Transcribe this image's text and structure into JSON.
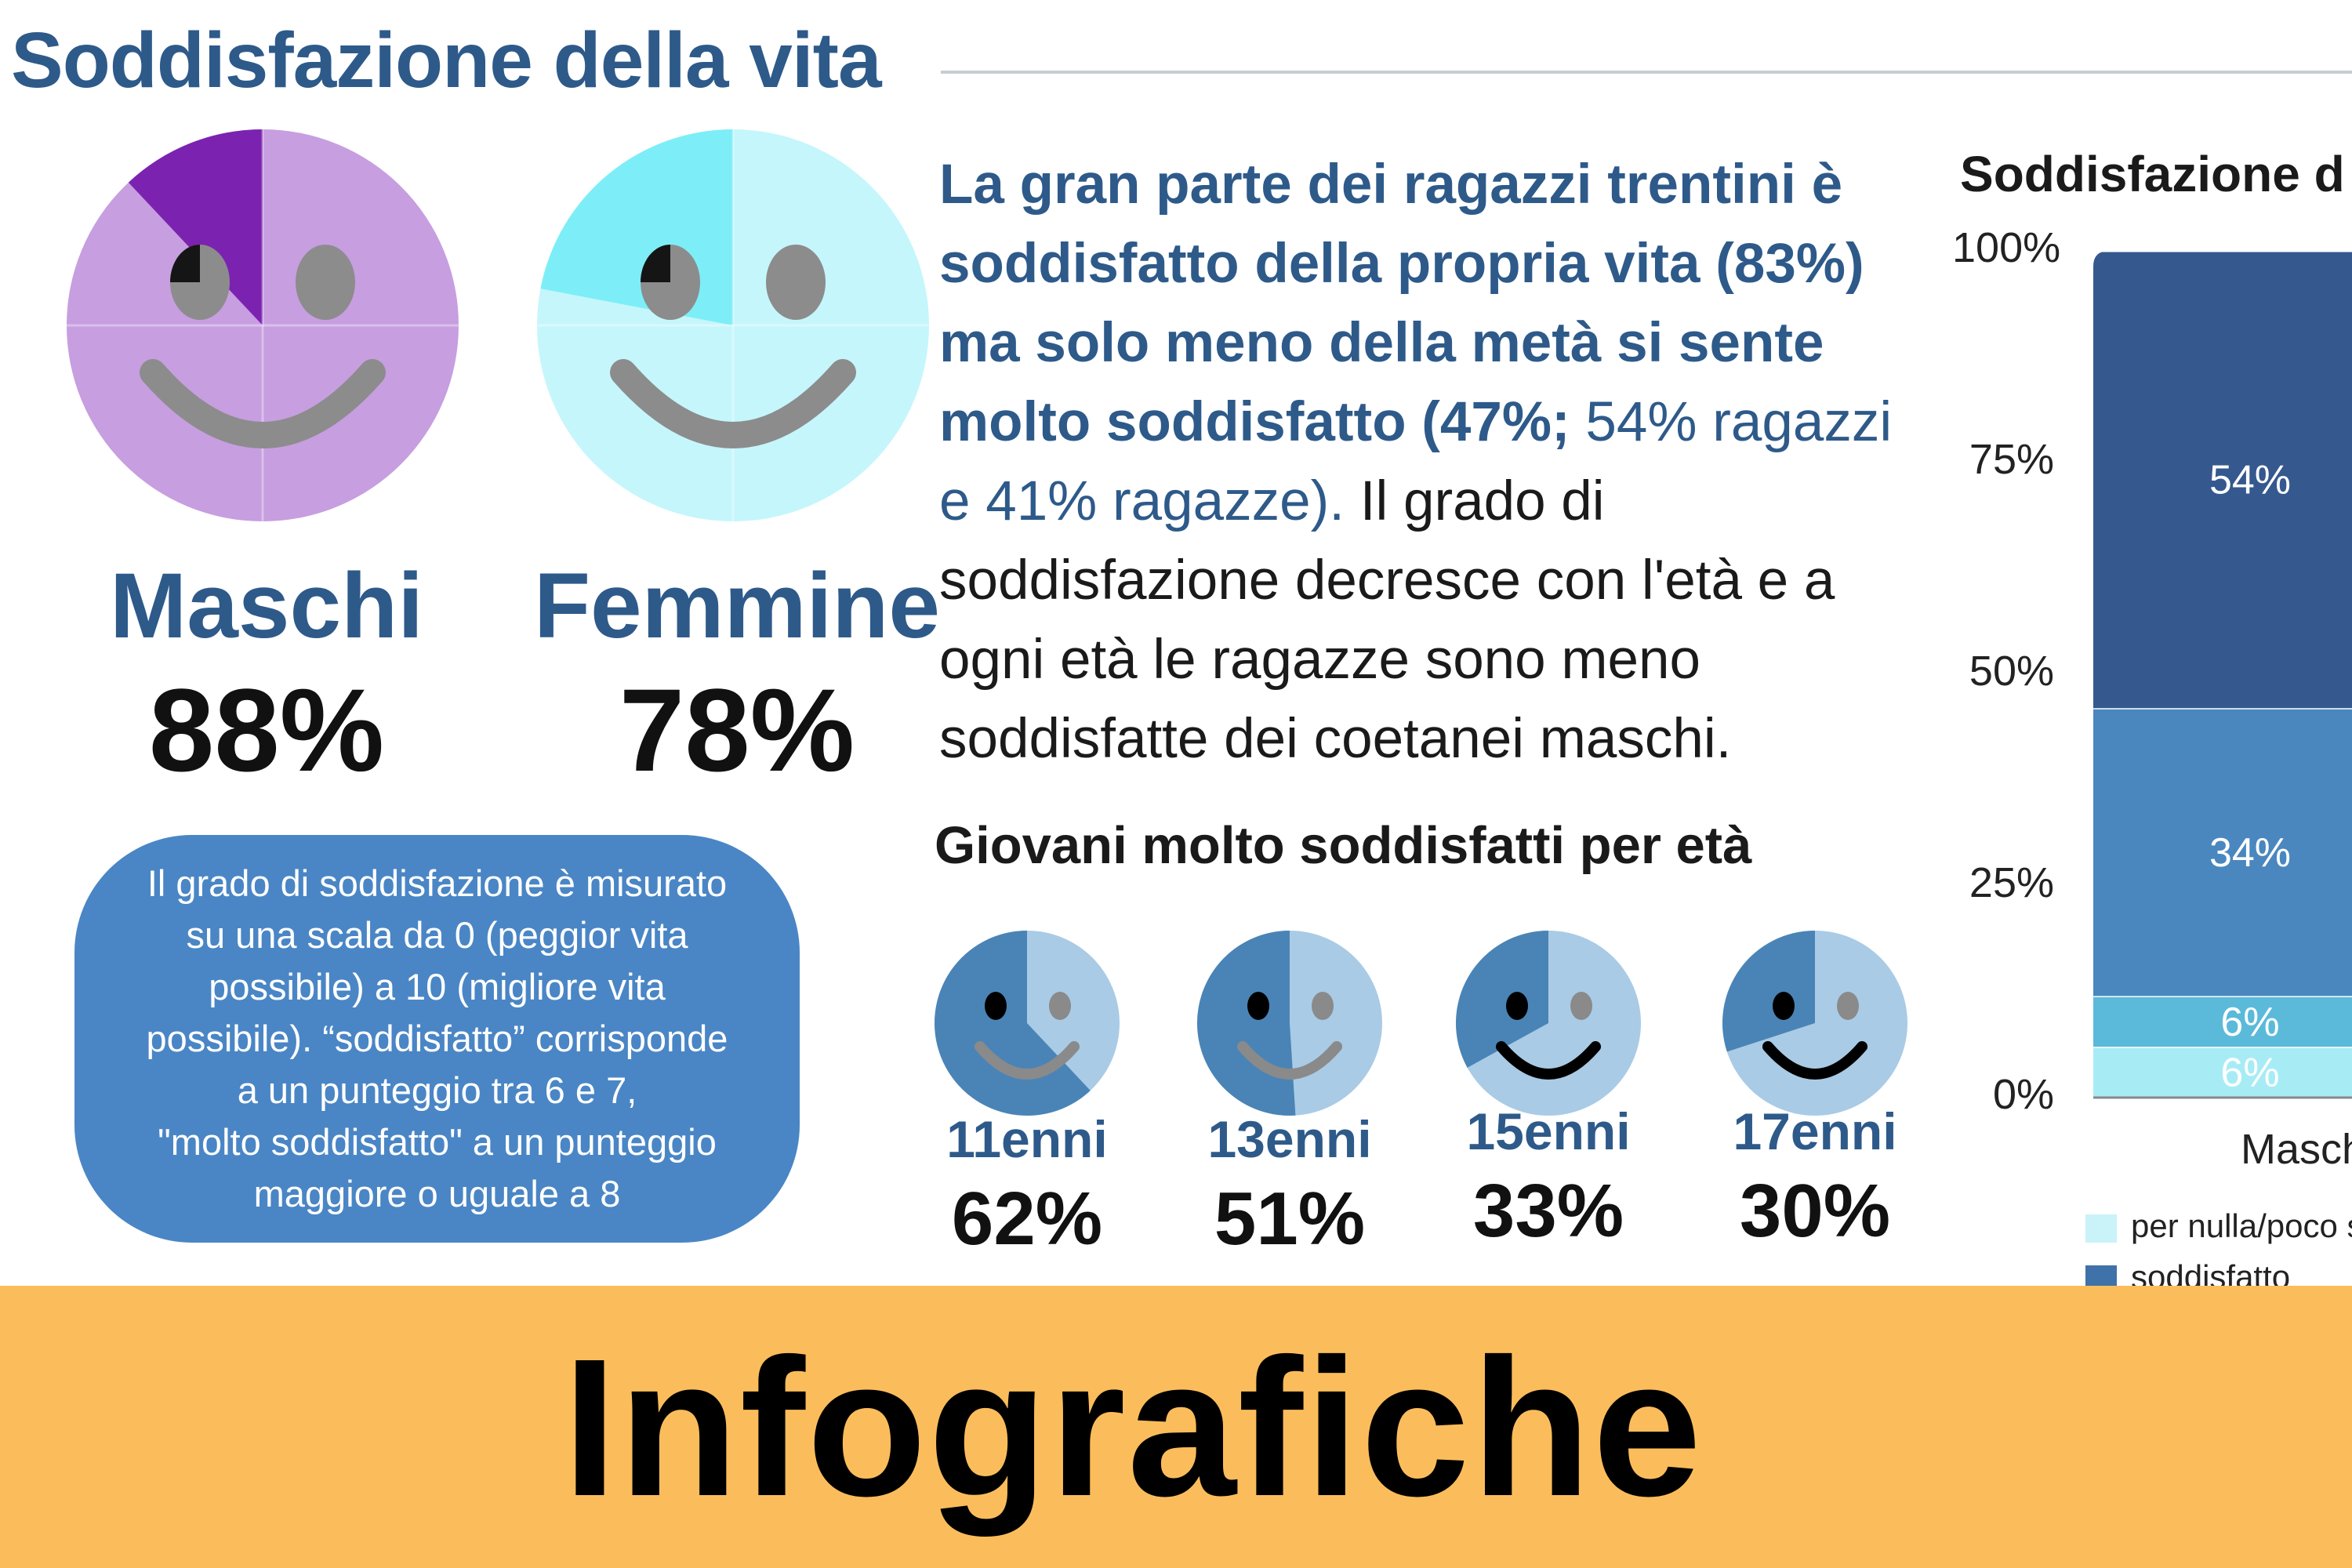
{
  "header": {
    "title": "Soddisfazione della vita"
  },
  "genders": [
    {
      "label": "Maschi",
      "value": "88%",
      "face_color": "#c79ee0",
      "highlight_color": "#7b23b0",
      "highlight_fraction": 0.12
    },
    {
      "label": "Femmine",
      "value": "78%",
      "face_color": "#c5f6fb",
      "highlight_color": "#7deef7",
      "highlight_fraction": 0.22
    }
  ],
  "note": {
    "lines": [
      "Il grado di soddisfazione è misurato",
      "su una scala da 0 (peggior vita",
      "possibile) a 10 (migliore vita",
      "possibile). “soddisfatto” corrisponde",
      "a un punteggio tra 6 e 7,",
      "\"molto soddisfatto\" a un punteggio",
      "maggiore o uguale a 8"
    ]
  },
  "summary": {
    "bold_part": "La gran parte dei ragazzi trentini è soddisfatto della propria vita (83%) ma solo meno della metà si sente molto soddisfatto (47%;",
    "light_part": " 54% ragazzi e 41% ragazze).",
    "regular_part": " Il grado di soddisfazione decresce con l'età e a ogni età le ragazze sono meno soddisfatte dei coetanei maschi."
  },
  "ages": {
    "title": "Giovani molto soddisfatti per età",
    "face_color": "#a9cbe5",
    "fill_color": "#4a84b6",
    "items": [
      {
        "label": "11enni",
        "value": "62%",
        "fraction": 0.62
      },
      {
        "label": "13enni",
        "value": "51%",
        "fraction": 0.51
      },
      {
        "label": "15enni",
        "value": "33%",
        "fraction": 0.33
      },
      {
        "label": "17enni",
        "value": "30%",
        "fraction": 0.3
      }
    ]
  },
  "chart_data": {
    "type": "bar",
    "title": "Soddisfazione d",
    "categories": [
      "Masch"
    ],
    "ylim": [
      0,
      100
    ],
    "yticks": [
      "0%",
      "25%",
      "50%",
      "75%",
      "100%"
    ],
    "series": [
      {
        "name": "per nulla/poco s",
        "values": [
          6
        ],
        "label": "6%",
        "color": "#a7ecf5"
      },
      {
        "values": [
          6
        ],
        "label": "6%",
        "color": "#5bbad9"
      },
      {
        "values": [
          34
        ],
        "label": "34%",
        "color": "#4a87bf"
      },
      {
        "values": [
          54
        ],
        "label": "54%",
        "color": "#35588e"
      }
    ],
    "legend": [
      {
        "label": "per nulla/poco s",
        "color": "#c9f3f8"
      },
      {
        "label": "soddisfatto",
        "color": "#3f72a8"
      }
    ]
  },
  "banner": {
    "text": "Infografiche",
    "color": "#fbbd5b"
  }
}
